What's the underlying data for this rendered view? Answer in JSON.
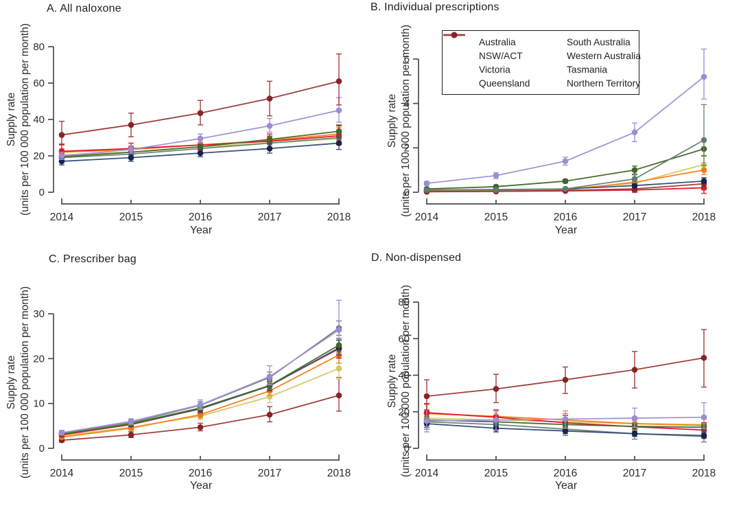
{
  "figure": {
    "xlabel": "Year",
    "ylabel_line1": "Supply rate",
    "ylabel_line2": "(units per 100 000 population per month)",
    "axis_color": "#4b4b4b",
    "text_color": "#2d2d2d",
    "background_color": "#ffffff"
  },
  "series_styles": {
    "Australia": {
      "color": "#4c6b2c",
      "marker": "#45632a"
    },
    "NSW/ACT": {
      "color": "#3c5379",
      "marker": "#17244e"
    },
    "Victoria": {
      "color": "#a493d6",
      "marker": "#9d8cd2"
    },
    "Queensland": {
      "color": "#f58220",
      "marker": "#f07a15"
    },
    "South Australia": {
      "color": "#6b8874",
      "marker": "#5f7d6b"
    },
    "Western Australia": {
      "color": "#d5ca68",
      "marker": "#d2c662"
    },
    "Tasmania": {
      "color": "#e41b2d",
      "marker": "#dd1128"
    },
    "Northern Territory": {
      "color": "#a03e3c",
      "marker": "#86242a"
    }
  },
  "legend": {
    "items": [
      {
        "label": "Australia"
      },
      {
        "label": "NSW/ACT"
      },
      {
        "label": "Victoria"
      },
      {
        "label": "Queensland"
      },
      {
        "label": "South Australia"
      },
      {
        "label": "Western Australia"
      },
      {
        "label": "Tasmania"
      },
      {
        "label": "Northern Territory"
      }
    ]
  },
  "chart_data": [
    {
      "type": "line",
      "title": "A. All naloxone",
      "x": [
        2014,
        2015,
        2016,
        2017,
        2018
      ],
      "ylim": [
        0,
        80
      ],
      "yticks": [
        0,
        20,
        40,
        60,
        80
      ],
      "grid": false,
      "series": [
        {
          "name": "Western Australia",
          "values": [
            20.5,
            22,
            25,
            27,
            29.5
          ],
          "lo": [
            19,
            20.5,
            23,
            24.5,
            26
          ],
          "hi": [
            22,
            24,
            27,
            29.5,
            33
          ]
        },
        {
          "name": "South Australia",
          "values": [
            19,
            21,
            24,
            27,
            30
          ],
          "lo": [
            17.5,
            19.5,
            22,
            24.5,
            26.5
          ],
          "hi": [
            21,
            23,
            26,
            29.5,
            34
          ]
        },
        {
          "name": "Queensland",
          "values": [
            22,
            23.5,
            26,
            28.5,
            32
          ],
          "lo": [
            20.5,
            22,
            24.5,
            26.5,
            28.5
          ],
          "hi": [
            24,
            25,
            27.5,
            31,
            35.5
          ]
        },
        {
          "name": "Tasmania",
          "values": [
            22.5,
            24,
            26,
            28,
            31
          ],
          "lo": [
            19.5,
            21,
            23,
            24.5,
            26
          ],
          "hi": [
            26.5,
            27,
            29,
            32,
            37
          ]
        },
        {
          "name": "Australia",
          "values": [
            19.5,
            22,
            25,
            29,
            33.5
          ],
          "lo": [
            18.5,
            21,
            24,
            27.5,
            31
          ],
          "hi": [
            20.5,
            23,
            26,
            30.5,
            36.5
          ]
        },
        {
          "name": "NSW/ACT",
          "values": [
            17,
            19,
            21.5,
            24,
            27
          ],
          "lo": [
            15,
            17,
            19.5,
            21.5,
            23.5
          ],
          "hi": [
            19,
            21,
            23.5,
            26.5,
            30.5
          ]
        },
        {
          "name": "Victoria",
          "values": [
            20,
            23.5,
            29.5,
            36.5,
            45
          ],
          "lo": [
            18,
            21.5,
            27,
            33,
            38.5
          ],
          "hi": [
            22,
            25.5,
            32,
            40.5,
            52
          ]
        },
        {
          "name": "Northern Territory",
          "values": [
            31.5,
            37,
            43.5,
            51.5,
            61
          ],
          "lo": [
            26,
            30.5,
            37,
            42,
            48
          ],
          "hi": [
            39,
            43.5,
            50.5,
            61,
            76
          ]
        }
      ]
    },
    {
      "type": "line",
      "title": "B. Individual prescriptions",
      "x": [
        2014,
        2015,
        2016,
        2017,
        2018
      ],
      "ylim": [
        0,
        6
      ],
      "yticks": [
        0,
        2,
        4,
        6
      ],
      "grid": false,
      "legend_position": "top-left-inside",
      "series": [
        {
          "name": "Western Australia",
          "values": [
            0.05,
            0.08,
            0.15,
            0.4,
            1.25
          ],
          "lo": [
            0.03,
            0.05,
            0.1,
            0.27,
            0.95
          ],
          "hi": [
            0.07,
            0.11,
            0.2,
            0.53,
            1.6
          ]
        },
        {
          "name": "Queensland",
          "values": [
            0.05,
            0.07,
            0.1,
            0.45,
            1.0
          ],
          "lo": [
            0.03,
            0.05,
            0.07,
            0.32,
            0.8
          ],
          "hi": [
            0.07,
            0.09,
            0.13,
            0.58,
            1.2
          ]
        },
        {
          "name": "Tasmania",
          "values": [
            0.02,
            0.04,
            0.06,
            0.1,
            0.2
          ],
          "lo": [
            0,
            0.01,
            0.02,
            0,
            -0.05
          ],
          "hi": [
            0.04,
            0.07,
            0.1,
            0.25,
            0.45
          ]
        },
        {
          "name": "Northern Territory",
          "values": [
            0.03,
            0.04,
            0.08,
            0.15,
            0.38
          ],
          "lo": [
            0,
            0.01,
            0.03,
            0.02,
            0.12
          ],
          "hi": [
            0.06,
            0.07,
            0.13,
            0.3,
            0.65
          ]
        },
        {
          "name": "NSW/ACT",
          "values": [
            0.1,
            0.12,
            0.15,
            0.3,
            0.5
          ],
          "lo": [
            0.07,
            0.09,
            0.12,
            0.24,
            0.38
          ],
          "hi": [
            0.13,
            0.15,
            0.18,
            0.36,
            0.65
          ]
        },
        {
          "name": "Australia",
          "values": [
            0.15,
            0.25,
            0.5,
            1.0,
            1.95
          ],
          "lo": [
            0.1,
            0.2,
            0.42,
            0.82,
            1.65
          ],
          "hi": [
            0.2,
            0.3,
            0.58,
            1.18,
            2.3
          ]
        },
        {
          "name": "South Australia",
          "values": [
            0.1,
            0.1,
            0.15,
            0.6,
            2.35
          ],
          "lo": [
            0.06,
            0.06,
            0.1,
            0.42,
            1.2
          ],
          "hi": [
            0.14,
            0.14,
            0.2,
            0.78,
            3.95
          ]
        },
        {
          "name": "Victoria",
          "values": [
            0.4,
            0.75,
            1.4,
            2.7,
            5.2
          ],
          "lo": [
            0.32,
            0.62,
            1.22,
            2.28,
            4.2
          ],
          "hi": [
            0.48,
            0.88,
            1.58,
            3.12,
            6.45
          ]
        }
      ]
    },
    {
      "type": "line",
      "title": "C. Prescriber bag",
      "x": [
        2014,
        2015,
        2016,
        2017,
        2018
      ],
      "ylim": [
        0,
        30
      ],
      "yticks": [
        0,
        10,
        20,
        30
      ],
      "grid": false,
      "series": [
        {
          "name": "Northern Territory",
          "values": [
            1.8,
            3,
            4.7,
            7.5,
            11.8
          ],
          "lo": [
            1.4,
            2.4,
            3.9,
            5.9,
            8.3
          ],
          "hi": [
            2.3,
            3.7,
            5.6,
            9.3,
            15.8
          ]
        },
        {
          "name": "Western Australia",
          "values": [
            2.8,
            4.7,
            7.2,
            11.5,
            17.8
          ],
          "lo": [
            2.4,
            4.2,
            6.4,
            10.2,
            15.4
          ],
          "hi": [
            3.2,
            5.2,
            8,
            12.9,
            20.3
          ]
        },
        {
          "name": "Queensland",
          "values": [
            2.5,
            4.5,
            7.5,
            12.8,
            20.8
          ],
          "lo": [
            2.2,
            4.1,
            6.8,
            11.8,
            19
          ],
          "hi": [
            2.8,
            5,
            8.2,
            13.9,
            22.7
          ]
        },
        {
          "name": "Tasmania",
          "values": [
            3,
            5.3,
            8.8,
            14,
            22.2
          ],
          "lo": [
            2.6,
            4.8,
            7.9,
            12.8,
            20.1
          ],
          "hi": [
            3.4,
            5.9,
            9.7,
            15.3,
            24.4
          ]
        },
        {
          "name": "NSW/ACT",
          "values": [
            3.2,
            5.4,
            8.8,
            13.9,
            22.4
          ],
          "lo": [
            2.8,
            4.9,
            8.1,
            12.9,
            20.8
          ],
          "hi": [
            3.6,
            5.9,
            9.5,
            15,
            24.1
          ]
        },
        {
          "name": "Australia",
          "values": [
            3.2,
            5.5,
            9,
            14,
            23
          ],
          "lo": [
            2.9,
            5.1,
            8.4,
            13.2,
            21.5
          ],
          "hi": [
            3.5,
            5.9,
            9.6,
            14.9,
            24.5
          ]
        },
        {
          "name": "South Australia",
          "values": [
            3.4,
            5.7,
            9.6,
            15.8,
            26.8
          ],
          "lo": [
            3,
            5.2,
            8.9,
            14.7,
            25.2
          ],
          "hi": [
            3.8,
            6.3,
            10.4,
            17,
            28.4
          ]
        },
        {
          "name": "Victoria",
          "values": [
            3.5,
            6,
            9.7,
            16,
            26.4
          ],
          "lo": [
            3,
            5.4,
            8.7,
            14.2,
            24.4
          ],
          "hi": [
            4,
            6.6,
            10.8,
            18.4,
            33
          ]
        }
      ]
    },
    {
      "type": "line",
      "title": "D. Non-dispensed",
      "x": [
        2014,
        2015,
        2016,
        2017,
        2018
      ],
      "ylim": [
        0,
        80
      ],
      "yticks": [
        0,
        20,
        40,
        60,
        80
      ],
      "grid": false,
      "series": [
        {
          "name": "Western Australia",
          "values": [
            16.5,
            15.5,
            14.5,
            13.5,
            13
          ],
          "lo": [
            12.5,
            12,
            11,
            10,
            9.5
          ],
          "hi": [
            21,
            19.5,
            18,
            17,
            16.5
          ]
        },
        {
          "name": "South Australia",
          "values": [
            14.5,
            13,
            10.5,
            8,
            6.5
          ],
          "lo": [
            10.5,
            9,
            7,
            5,
            3.5
          ],
          "hi": [
            19,
            17,
            14,
            11.5,
            9.5
          ]
        },
        {
          "name": "Queensland",
          "values": [
            19,
            17.5,
            15.5,
            13.5,
            12.5
          ],
          "lo": [
            14.5,
            14,
            12,
            10.5,
            9.5
          ],
          "hi": [
            24,
            21,
            19,
            17,
            16
          ]
        },
        {
          "name": "Tasmania",
          "values": [
            19.5,
            17,
            14,
            11.8,
            10
          ],
          "lo": [
            15,
            13,
            10.5,
            8.5,
            6.5
          ],
          "hi": [
            24.5,
            21,
            18,
            15.5,
            14
          ]
        },
        {
          "name": "Australia",
          "values": [
            15.5,
            14.5,
            13,
            12,
            11.5
          ],
          "lo": [
            13.5,
            12.5,
            11.5,
            10.5,
            10
          ],
          "hi": [
            17.5,
            16.5,
            15,
            13.5,
            13
          ]
        },
        {
          "name": "NSW/ACT",
          "values": [
            13.5,
            11,
            9.5,
            8,
            7
          ],
          "lo": [
            11.5,
            9,
            8,
            6.5,
            5.5
          ],
          "hi": [
            15.5,
            13,
            11,
            9.5,
            8.5
          ]
        },
        {
          "name": "Victoria",
          "values": [
            15,
            15.5,
            16,
            16.5,
            17
          ],
          "lo": [
            9,
            10,
            11,
            11.5,
            11
          ],
          "hi": [
            21,
            20.5,
            20.5,
            22,
            25
          ]
        },
        {
          "name": "Northern Territory",
          "values": [
            28.5,
            32.5,
            37.5,
            43,
            49.5
          ],
          "lo": [
            21,
            25,
            30,
            33,
            33.5
          ],
          "hi": [
            37.5,
            40.5,
            44.5,
            53,
            65
          ]
        }
      ]
    }
  ]
}
